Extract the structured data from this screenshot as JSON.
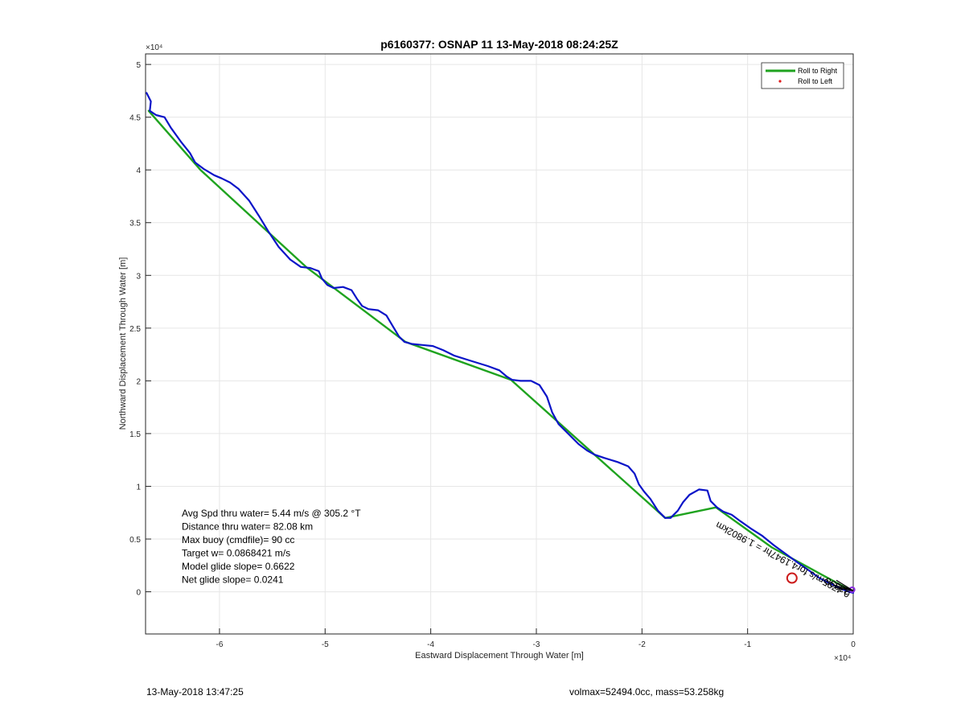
{
  "chart_data": {
    "type": "line",
    "title": "p6160377: OSNAP 11 13-May-2018 08:24:25Z",
    "xlabel": "Eastward Displacement Through Water [m]",
    "ylabel": "Northward Displacement Through Water [m]",
    "x_exponent": "×10⁴",
    "y_exponent": "×10⁴",
    "xlim": [
      -67000,
      0
    ],
    "ylim": [
      -4000,
      51000
    ],
    "x_ticks": [
      -60000,
      -50000,
      -40000,
      -30000,
      -20000,
      -10000,
      0
    ],
    "x_tick_labels": [
      "-6",
      "-5",
      "-4",
      "-3",
      "-2",
      "-1",
      "0"
    ],
    "y_ticks": [
      0,
      5000,
      10000,
      15000,
      20000,
      25000,
      30000,
      35000,
      40000,
      45000,
      50000
    ],
    "y_tick_labels": [
      "0",
      "0.5",
      "1",
      "1.5",
      "2",
      "2.5",
      "3",
      "3.5",
      "4",
      "4.5",
      "5"
    ],
    "grid": true,
    "legend": {
      "placement": "top-right",
      "entries": [
        {
          "label": "Roll to Right",
          "color": "#1fa31f",
          "marker": "line"
        },
        {
          "label": "Roll to Left",
          "color": "#e01b1b",
          "marker": "dot"
        }
      ]
    },
    "series": [
      {
        "color": "#1fa31f",
        "points": [
          [
            -66700,
            45600
          ],
          [
            -61800,
            40000
          ],
          [
            -51800,
            30800
          ],
          [
            -42400,
            23700
          ],
          [
            -32400,
            20100
          ],
          [
            -17800,
            7000
          ],
          [
            -13000,
            8000
          ],
          [
            -7700,
            4200
          ],
          [
            0,
            0
          ]
        ]
      },
      {
        "color": "#0b14c8",
        "points": [
          [
            -66900,
            47300
          ],
          [
            -66500,
            46500
          ],
          [
            -66600,
            45600
          ],
          [
            -66000,
            45200
          ],
          [
            -65200,
            45000
          ],
          [
            -64600,
            44000
          ],
          [
            -63600,
            42600
          ],
          [
            -62800,
            41600
          ],
          [
            -62300,
            40700
          ],
          [
            -61500,
            40100
          ],
          [
            -60500,
            39500
          ],
          [
            -59800,
            39200
          ],
          [
            -59000,
            38800
          ],
          [
            -58200,
            38200
          ],
          [
            -57200,
            37100
          ],
          [
            -56300,
            35700
          ],
          [
            -55400,
            34200
          ],
          [
            -54400,
            32700
          ],
          [
            -53300,
            31500
          ],
          [
            -52300,
            30800
          ],
          [
            -51400,
            30700
          ],
          [
            -50600,
            30400
          ],
          [
            -50300,
            29700
          ],
          [
            -49800,
            29100
          ],
          [
            -49200,
            28800
          ],
          [
            -48300,
            28900
          ],
          [
            -47500,
            28600
          ],
          [
            -47000,
            27800
          ],
          [
            -46500,
            27100
          ],
          [
            -45900,
            26800
          ],
          [
            -45000,
            26700
          ],
          [
            -44200,
            26200
          ],
          [
            -43600,
            25200
          ],
          [
            -43000,
            24200
          ],
          [
            -42500,
            23700
          ],
          [
            -41800,
            23500
          ],
          [
            -40800,
            23400
          ],
          [
            -39800,
            23300
          ],
          [
            -38800,
            22900
          ],
          [
            -37800,
            22400
          ],
          [
            -36200,
            21900
          ],
          [
            -34600,
            21400
          ],
          [
            -33500,
            21000
          ],
          [
            -32800,
            20400
          ],
          [
            -32300,
            20100
          ],
          [
            -31500,
            20000
          ],
          [
            -30500,
            20000
          ],
          [
            -29700,
            19600
          ],
          [
            -29000,
            18500
          ],
          [
            -28500,
            17000
          ],
          [
            -27900,
            15900
          ],
          [
            -27000,
            15000
          ],
          [
            -26000,
            14000
          ],
          [
            -25200,
            13400
          ],
          [
            -24500,
            13000
          ],
          [
            -23600,
            12700
          ],
          [
            -22300,
            12300
          ],
          [
            -21300,
            11900
          ],
          [
            -20700,
            11200
          ],
          [
            -20300,
            10200
          ],
          [
            -19800,
            9500
          ],
          [
            -19200,
            8800
          ],
          [
            -18500,
            7700
          ],
          [
            -17800,
            7000
          ],
          [
            -17300,
            7000
          ],
          [
            -16600,
            7700
          ],
          [
            -16100,
            8500
          ],
          [
            -15500,
            9200
          ],
          [
            -14600,
            9700
          ],
          [
            -13800,
            9600
          ],
          [
            -13500,
            8600
          ],
          [
            -12900,
            8000
          ],
          [
            -12300,
            7600
          ],
          [
            -11500,
            7300
          ],
          [
            -10700,
            6700
          ],
          [
            -9700,
            6000
          ],
          [
            -8600,
            5300
          ],
          [
            -7500,
            4400
          ],
          [
            -6400,
            3600
          ],
          [
            -5300,
            2800
          ],
          [
            -4300,
            2100
          ],
          [
            -3200,
            1300
          ],
          [
            -2200,
            800
          ],
          [
            -1200,
            300
          ],
          [
            -400,
            0
          ],
          [
            0,
            -100
          ]
        ]
      }
    ],
    "annotations": [
      {
        "text": "Avg Spd thru water=  5.44 m/s @ 305.2 °T"
      },
      {
        "text": "Distance thru water= 82.08 km"
      },
      {
        "text": "Max buoy (cmdfile)= 90 cc"
      },
      {
        "text": "Target w= 0.0868421 m/s"
      },
      {
        "text": "Model glide slope= 0.6622"
      },
      {
        "text": "Net glide slope= 0.0241"
      },
      {
        "text": "0.4795m/s for4.1947hr = 1.9802km",
        "rotated": true
      },
      {
        "text": "33398",
        "rotated": true
      }
    ],
    "markers": [
      {
        "x": -5800,
        "y": 1300,
        "shape": "circle",
        "color": "#cc1b1b"
      },
      {
        "x": -100,
        "y": 200,
        "shape": "circle",
        "color": "#8a2be2"
      }
    ]
  },
  "footer": {
    "left": "13-May-2018 13:47:25",
    "right": "volmax=52494.0cc, mass=53.258kg"
  }
}
